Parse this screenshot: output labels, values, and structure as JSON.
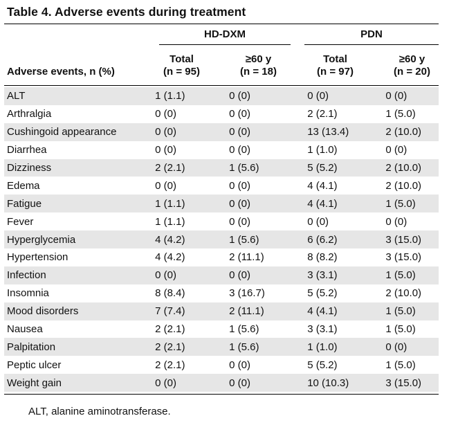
{
  "title": "Table 4. Adverse events during treatment",
  "groups": {
    "g1": "HD-DXM",
    "g2": "PDN"
  },
  "header": {
    "row_label": "Adverse events, n (%)",
    "g1_total_1": "Total",
    "g1_total_2": "(n = 95)",
    "g1_age_1": "≥60 y",
    "g1_age_2": "(n = 18)",
    "g2_total_1": "Total",
    "g2_total_2": "(n = 97)",
    "g2_age_1": "≥60 y",
    "g2_age_2": "(n = 20)"
  },
  "rows": [
    {
      "name": "ALT",
      "c1": "1 (1.1)",
      "c2": "0 (0)",
      "c3": "0 (0)",
      "c4": "0 (0)"
    },
    {
      "name": "Arthralgia",
      "c1": "0 (0)",
      "c2": "0 (0)",
      "c3": "2 (2.1)",
      "c4": "1 (5.0)"
    },
    {
      "name": "Cushingoid appearance",
      "c1": "0 (0)",
      "c2": "0 (0)",
      "c3": "13 (13.4)",
      "c4": "2 (10.0)"
    },
    {
      "name": "Diarrhea",
      "c1": "0 (0)",
      "c2": "0 (0)",
      "c3": "1 (1.0)",
      "c4": "0 (0)"
    },
    {
      "name": "Dizziness",
      "c1": "2 (2.1)",
      "c2": "1 (5.6)",
      "c3": "5 (5.2)",
      "c4": "2 (10.0)"
    },
    {
      "name": "Edema",
      "c1": "0 (0)",
      "c2": "0 (0)",
      "c3": "4 (4.1)",
      "c4": "2 (10.0)"
    },
    {
      "name": "Fatigue",
      "c1": "1 (1.1)",
      "c2": "0 (0)",
      "c3": "4 (4.1)",
      "c4": "1 (5.0)"
    },
    {
      "name": "Fever",
      "c1": "1 (1.1)",
      "c2": "0 (0)",
      "c3": "0 (0)",
      "c4": "0 (0)"
    },
    {
      "name": "Hyperglycemia",
      "c1": "4 (4.2)",
      "c2": "1 (5.6)",
      "c3": "6 (6.2)",
      "c4": "3 (15.0)"
    },
    {
      "name": "Hypertension",
      "c1": "4 (4.2)",
      "c2": "2 (11.1)",
      "c3": "8 (8.2)",
      "c4": "3 (15.0)"
    },
    {
      "name": "Infection",
      "c1": "0 (0)",
      "c2": "0 (0)",
      "c3": "3 (3.1)",
      "c4": "1 (5.0)"
    },
    {
      "name": "Insomnia",
      "c1": "8 (8.4)",
      "c2": "3 (16.7)",
      "c3": "5 (5.2)",
      "c4": "2 (10.0)"
    },
    {
      "name": "Mood disorders",
      "c1": "7 (7.4)",
      "c2": "2 (11.1)",
      "c3": "4 (4.1)",
      "c4": "1 (5.0)"
    },
    {
      "name": "Nausea",
      "c1": "2 (2.1)",
      "c2": "1 (5.6)",
      "c3": "3 (3.1)",
      "c4": "1 (5.0)"
    },
    {
      "name": "Palpitation",
      "c1": "2 (2.1)",
      "c2": "1 (5.6)",
      "c3": "1 (1.0)",
      "c4": "0 (0)"
    },
    {
      "name": "Peptic ulcer",
      "c1": "2 (2.1)",
      "c2": "0 (0)",
      "c3": "5 (5.2)",
      "c4": "1 (5.0)"
    },
    {
      "name": "Weight gain",
      "c1": "0 (0)",
      "c2": "0 (0)",
      "c3": "10 (10.3)",
      "c4": "3 (15.0)"
    }
  ],
  "footnote": "ALT, alanine aminotransferase."
}
